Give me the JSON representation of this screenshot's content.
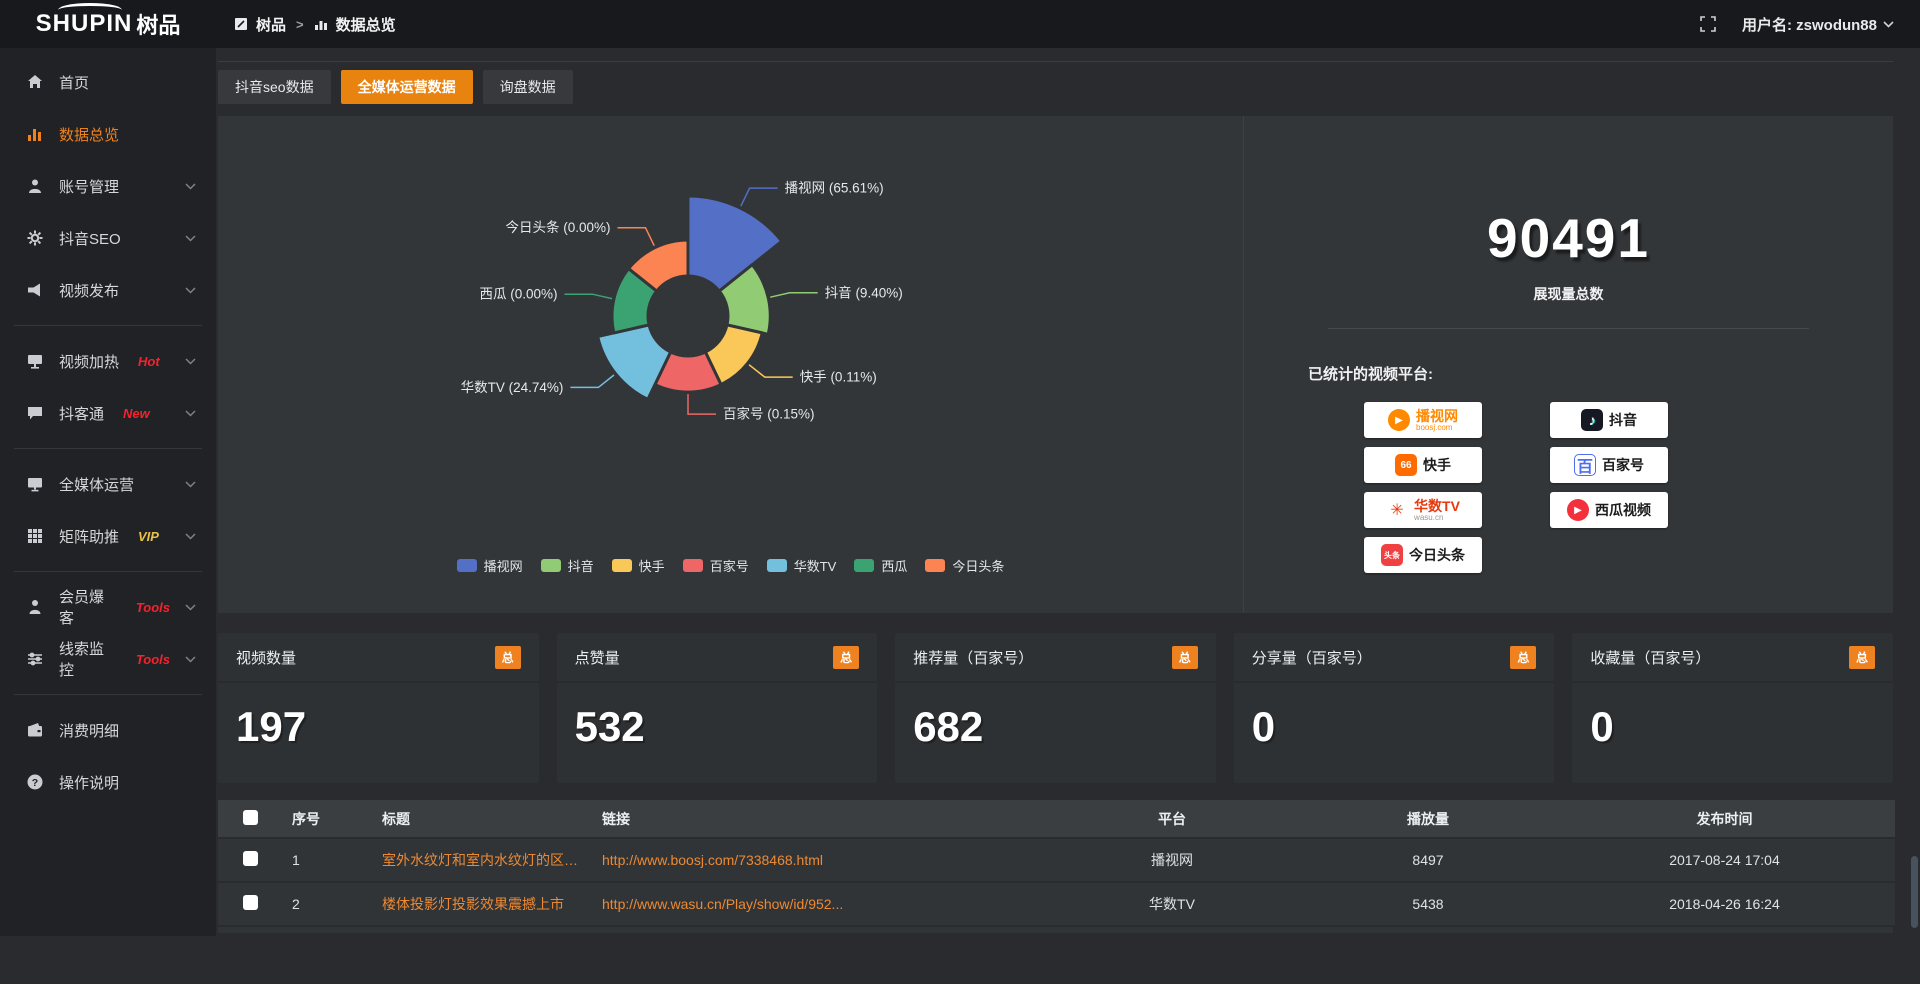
{
  "topbar": {
    "logo": "SHUPIN",
    "logo_cn": "树品",
    "breadcrumb": {
      "root": "树品",
      "separator": ">",
      "current": "数据总览"
    },
    "user_label": "用户名: zswodun88"
  },
  "sidebar": [
    {
      "label": "首页",
      "icon": "home"
    },
    {
      "label": "数据总览",
      "icon": "chart",
      "active": true
    },
    {
      "label": "账号管理",
      "icon": "user",
      "chevron": true
    },
    {
      "label": "抖音SEO",
      "icon": "gear",
      "chevron": true
    },
    {
      "label": "视频发布",
      "icon": "video",
      "chevron": true
    },
    {
      "divider": true
    },
    {
      "label": "视频加热",
      "icon": "heat",
      "badge": "Hot",
      "badge_color": "#f5222d",
      "chevron": true
    },
    {
      "label": "抖客通",
      "icon": "chat",
      "badge": "New",
      "badge_color": "#f5222d",
      "chevron": true
    },
    {
      "divider": true
    },
    {
      "label": "全媒体运营",
      "icon": "monitor",
      "chevron": true
    },
    {
      "label": "矩阵助推",
      "icon": "grid",
      "badge": "VIP",
      "badge_color": "#e8c14b",
      "chevron": true
    },
    {
      "divider": true
    },
    {
      "label": "会员爆客",
      "icon": "member",
      "badge": "Tools",
      "badge_color": "#f5222d",
      "chevron": true
    },
    {
      "label": "线索监控",
      "icon": "sliders",
      "badge": "Tools",
      "badge_color": "#f5222d",
      "chevron": true
    },
    {
      "divider": true
    },
    {
      "label": "消费明细",
      "icon": "wallet"
    },
    {
      "label": "操作说明",
      "icon": "question"
    }
  ],
  "tabs": [
    {
      "label": "抖音seo数据"
    },
    {
      "label": "全媒体运营数据",
      "active": true
    },
    {
      "label": "询盘数据"
    }
  ],
  "chart_data": {
    "type": "pie",
    "style": "nightingale-rose-donut",
    "legend_position": "bottom",
    "items": [
      {
        "name": "播视网",
        "percent": 65.61,
        "color": "#5470c6"
      },
      {
        "name": "抖音",
        "percent": 9.4,
        "color": "#91cc75"
      },
      {
        "name": "快手",
        "percent": 0.11,
        "color": "#fac858"
      },
      {
        "name": "百家号",
        "percent": 0.15,
        "color": "#ee6666"
      },
      {
        "name": "华数TV",
        "percent": 24.74,
        "color": "#73c0de"
      },
      {
        "name": "西瓜",
        "percent": 0.0,
        "color": "#3ba272"
      },
      {
        "name": "今日头条",
        "percent": 0.0,
        "color": "#fc8452"
      }
    ]
  },
  "summary": {
    "total": "90491",
    "total_label": "展现量总数",
    "platforms_label": "已统计的视频平台:",
    "platforms": [
      {
        "name": "播视网",
        "sub": "boosj.com",
        "logo": "boosj"
      },
      {
        "name": "抖音",
        "logo": "douyin"
      },
      {
        "name": "快手",
        "logo": "kuaishou"
      },
      {
        "name": "百家号",
        "logo": "baijiahao"
      },
      {
        "name": "华数TV",
        "sub": "wasu.cn",
        "logo": "wasu"
      },
      {
        "name": "西瓜视频",
        "logo": "xigua"
      },
      {
        "name": "今日头条",
        "logo": "toutiao"
      }
    ]
  },
  "stat_cards": [
    {
      "title": "视频数量",
      "badge": "总",
      "value": "197"
    },
    {
      "title": "点赞量",
      "badge": "总",
      "value": "532"
    },
    {
      "title": "推荐量（百家号）",
      "badge": "总",
      "value": "682"
    },
    {
      "title": "分享量（百家号）",
      "badge": "总",
      "value": "0"
    },
    {
      "title": "收藏量（百家号）",
      "badge": "总",
      "value": "0"
    }
  ],
  "table": {
    "headers": [
      "序号",
      "标题",
      "链接",
      "平台",
      "播放量",
      "发布时间"
    ],
    "rows": [
      {
        "index": "1",
        "title": "室外水纹灯和室内水纹灯的区别和简介",
        "link": "http://www.boosj.com/7338468.html",
        "platform": "播视网",
        "views": "8497",
        "time": "2017-08-24 17:04"
      },
      {
        "index": "2",
        "title": "楼体投影灯投影效果震撼上市",
        "link": "http://www.wasu.cn/Play/show/id/952...",
        "platform": "华数TV",
        "views": "5438",
        "time": "2018-04-26 16:24"
      }
    ]
  },
  "colors": {
    "accent": "#ef8220",
    "tab_active": "#e9830f",
    "link": "#ec8a33",
    "hot_red": "#f5222d",
    "vip_gold": "#e8c14b"
  }
}
